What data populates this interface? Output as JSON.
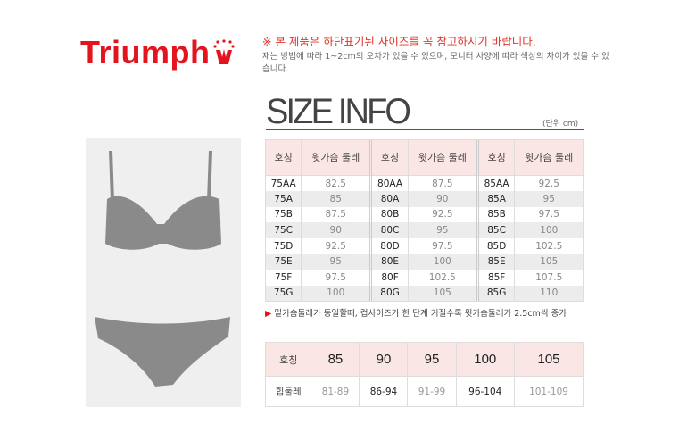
{
  "brand": "Triumph",
  "notice": "※ 본 제품은 하단표기된 사이즈를 꼭 참고하시기 바랍니다.",
  "subnotice": "재는 방법에 따라 1~2cm의 오차가 있을 수 있으며, 모니터 사양에 따라 색상의 차이가 있을 수 있습니다.",
  "title": "SIZE INFO",
  "unit": "(단위 cm)",
  "colors": {
    "brand": "#e3141e",
    "header_bg": "#fbe6e6",
    "alt_row": "#ececec"
  },
  "bra_table": {
    "headers": [
      "호칭",
      "윗가슴 둘레"
    ],
    "groups": [
      {
        "rows": [
          [
            "75AA",
            "82.5"
          ],
          [
            "75A",
            "85"
          ],
          [
            "75B",
            "87.5"
          ],
          [
            "75C",
            "90"
          ],
          [
            "75D",
            "92.5"
          ],
          [
            "75E",
            "95"
          ],
          [
            "75F",
            "97.5"
          ],
          [
            "75G",
            "100"
          ]
        ]
      },
      {
        "rows": [
          [
            "80AA",
            "87.5"
          ],
          [
            "80A",
            "90"
          ],
          [
            "80B",
            "92.5"
          ],
          [
            "80C",
            "95"
          ],
          [
            "80D",
            "97.5"
          ],
          [
            "80E",
            "100"
          ],
          [
            "80F",
            "102.5"
          ],
          [
            "80G",
            "105"
          ]
        ]
      },
      {
        "rows": [
          [
            "85AA",
            "92.5"
          ],
          [
            "85A",
            "95"
          ],
          [
            "85B",
            "97.5"
          ],
          [
            "85C",
            "100"
          ],
          [
            "85D",
            "102.5"
          ],
          [
            "85E",
            "105"
          ],
          [
            "85F",
            "107.5"
          ],
          [
            "85G",
            "110"
          ]
        ]
      }
    ]
  },
  "bra_note": "밑가슴둘레가 동일할때, 컵사이즈가 한 단계 커질수록 윗가슴둘레가 2.5cm씩 증가",
  "hip_table": {
    "label_size": "호칭",
    "label_hip": "힙둘레",
    "sizes": [
      "85",
      "90",
      "95",
      "100",
      "105"
    ],
    "hips": [
      "81-89",
      "86-94",
      "91-99",
      "96-104",
      "101-109"
    ]
  }
}
